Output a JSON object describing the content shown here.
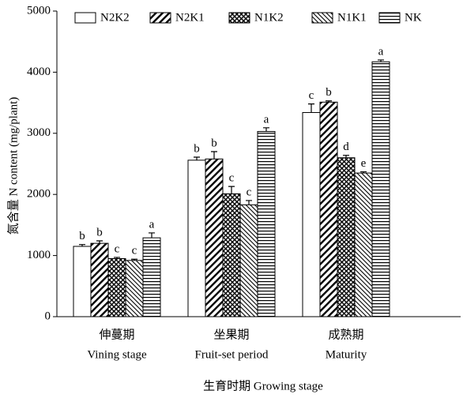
{
  "chart_data": {
    "type": "bar",
    "ylabel": "氮含量 N content (mg/plant)",
    "xlabel": "生育时期 Growing stage",
    "categories": [
      "伸蔓期",
      "坐果期",
      "成熟期"
    ],
    "categories_en": [
      "Vining stage",
      "Fruit-set period",
      "Maturity"
    ],
    "ylim": [
      0,
      5000
    ],
    "yticks": [
      0,
      1000,
      2000,
      3000,
      4000,
      5000
    ],
    "series": [
      {
        "name": "N2K2",
        "color": "#000000",
        "pattern": "none",
        "values": [
          1150,
          2560,
          3340
        ],
        "errors": [
          30,
          50,
          140
        ],
        "letters": [
          "b",
          "b",
          "c"
        ]
      },
      {
        "name": "N2K1",
        "color": "#000000",
        "pattern": "forward",
        "values": [
          1200,
          2580,
          3510
        ],
        "errors": [
          40,
          120,
          20
        ],
        "letters": [
          "b",
          "b",
          "b"
        ]
      },
      {
        "name": "N1K2",
        "color": "#000000",
        "pattern": "cross",
        "values": [
          950,
          2010,
          2600
        ],
        "errors": [
          20,
          120,
          40
        ],
        "letters": [
          "c",
          "c",
          "d"
        ]
      },
      {
        "name": "N1K1",
        "color": "#000000",
        "pattern": "backward",
        "values": [
          920,
          1830,
          2350
        ],
        "errors": [
          20,
          70,
          20
        ],
        "letters": [
          "c",
          "c",
          "e"
        ]
      },
      {
        "name": "NK",
        "color": "#000000",
        "pattern": "horizontal",
        "values": [
          1290,
          3030,
          4170
        ],
        "errors": [
          80,
          60,
          30
        ],
        "letters": [
          "a",
          "a",
          "a"
        ]
      }
    ]
  }
}
